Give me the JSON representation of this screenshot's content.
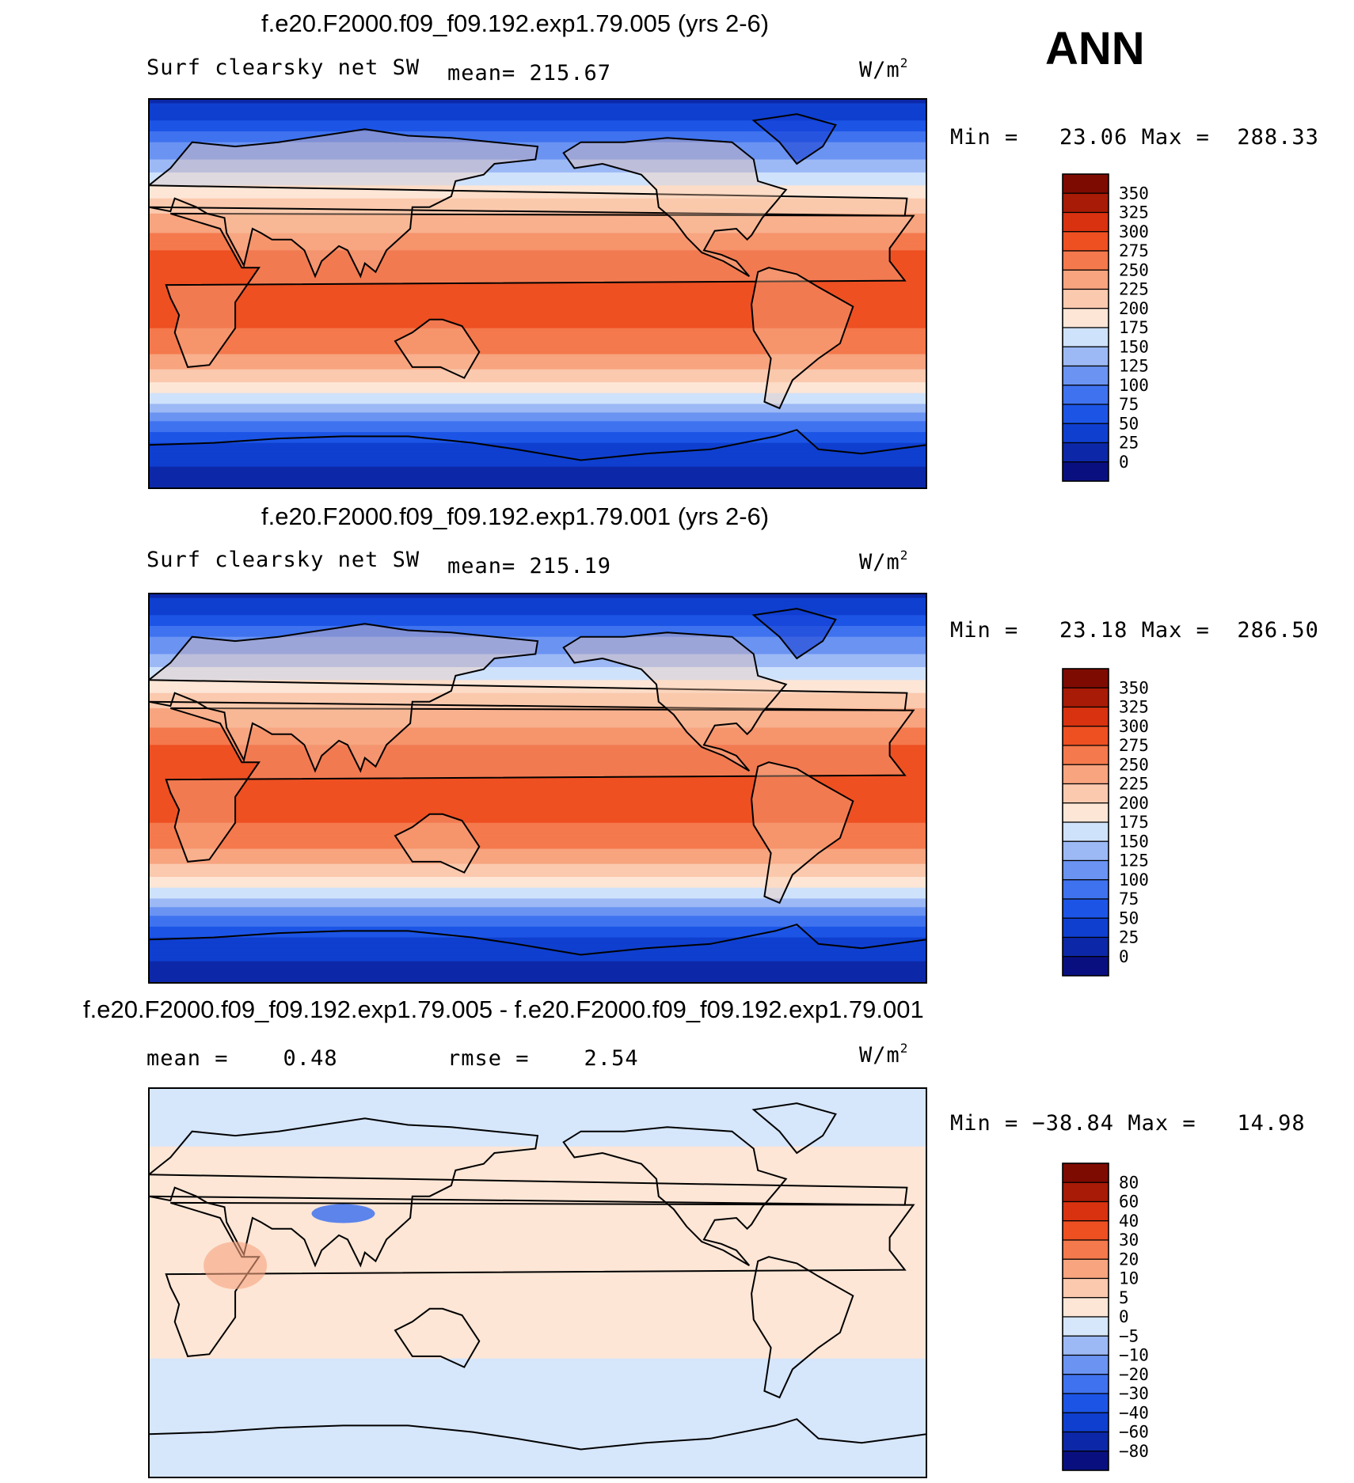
{
  "season": "ANN",
  "units": {
    "base": "W/m",
    "sup": "2"
  },
  "panels": [
    {
      "title": "f.e20.F2000.f09_f09.192.exp1.79.005 (yrs 2-6)",
      "variable": "Surf clearsky net SW",
      "stat_text": "mean= 215.67",
      "minmax_text": "Min =   23.06 Max =  288.33"
    },
    {
      "title": "f.e20.F2000.f09_f09.192.exp1.79.001 (yrs 2-6)",
      "variable": "Surf clearsky net SW",
      "stat_text": "mean= 215.19",
      "minmax_text": "Min =   23.18 Max =  286.50"
    },
    {
      "title": "f.e20.F2000.f09_f09.192.exp1.79.005 - f.e20.F2000.f09_f09.192.exp1.79.001",
      "variable": "mean =    0.48",
      "stat_text": "rmse =    2.54",
      "minmax_text": "Min = −38.84 Max =   14.98"
    }
  ],
  "chart_data": [
    {
      "type": "heatmap",
      "title": "f.e20.F2000.f09_f09.192.exp1.79.005 (yrs 2-6)",
      "variable": "Surf clearsky net SW",
      "units": "W/m^2",
      "mean": 215.67,
      "min": 23.06,
      "max": 288.33,
      "colorbar_levels": [
        "0",
        "25",
        "50",
        "75",
        "100",
        "125",
        "150",
        "175",
        "200",
        "225",
        "250",
        "275",
        "300",
        "325",
        "350"
      ],
      "colorbar_colors": [
        "#0a0f80",
        "#0c28a8",
        "#0f3fcf",
        "#1c55e6",
        "#3f72ef",
        "#6a93f2",
        "#9cb9f5",
        "#cfe2fb",
        "#fde6d6",
        "#fbc9ae",
        "#f7a47f",
        "#f4794c",
        "#ee5022",
        "#d83210",
        "#a81b06",
        "#7e0b02"
      ],
      "zonal_profile": {
        "latitudes": [
          90,
          80,
          70,
          60,
          50,
          40,
          30,
          20,
          10,
          0,
          -10,
          -20,
          -30,
          -40,
          -50,
          -60,
          -70,
          -80,
          -90
        ],
        "values": [
          20,
          50,
          100,
          130,
          175,
          215,
          245,
          275,
          285,
          285,
          282,
          270,
          245,
          205,
          155,
          95,
          45,
          25,
          20
        ]
      }
    },
    {
      "type": "heatmap",
      "title": "f.e20.F2000.f09_f09.192.exp1.79.001 (yrs 2-6)",
      "variable": "Surf clearsky net SW",
      "units": "W/m^2",
      "mean": 215.19,
      "min": 23.18,
      "max": 286.5,
      "colorbar_levels": [
        "0",
        "25",
        "50",
        "75",
        "100",
        "125",
        "150",
        "175",
        "200",
        "225",
        "250",
        "275",
        "300",
        "325",
        "350"
      ],
      "colorbar_colors": [
        "#0a0f80",
        "#0c28a8",
        "#0f3fcf",
        "#1c55e6",
        "#3f72ef",
        "#6a93f2",
        "#9cb9f5",
        "#cfe2fb",
        "#fde6d6",
        "#fbc9ae",
        "#f7a47f",
        "#f4794c",
        "#ee5022",
        "#d83210",
        "#a81b06",
        "#7e0b02"
      ],
      "zonal_profile": {
        "latitudes": [
          90,
          80,
          70,
          60,
          50,
          40,
          30,
          20,
          10,
          0,
          -10,
          -20,
          -30,
          -40,
          -50,
          -60,
          -70,
          -80,
          -90
        ],
        "values": [
          20,
          50,
          100,
          130,
          175,
          215,
          245,
          275,
          285,
          285,
          282,
          270,
          245,
          205,
          155,
          95,
          45,
          25,
          20
        ]
      }
    },
    {
      "type": "heatmap",
      "title": "f.e20.F2000.f09_f09.192.exp1.79.005 - f.e20.F2000.f09_f09.192.exp1.79.001",
      "units": "W/m^2",
      "mean": 0.48,
      "rmse": 2.54,
      "min": -38.84,
      "max": 14.98,
      "colorbar_levels": [
        "−80",
        "−60",
        "−40",
        "−30",
        "−20",
        "−10",
        "−5",
        "0",
        "5",
        "10",
        "20",
        "30",
        "40",
        "60",
        "80"
      ],
      "colorbar_colors": [
        "#0a0f80",
        "#0c28a8",
        "#0f3fcf",
        "#1c55e6",
        "#3f72ef",
        "#6a93f2",
        "#9cb9f5",
        "#d6e6fb",
        "#fde6d6",
        "#fbc9ae",
        "#f7a47f",
        "#f4794c",
        "#ee5022",
        "#d83210",
        "#a81b06",
        "#7e0b02"
      ],
      "zonal_profile": {
        "latitudes": [
          90,
          80,
          70,
          60,
          50,
          40,
          30,
          20,
          10,
          0,
          -10,
          -20,
          -30,
          -40,
          -50,
          -60,
          -70,
          -80,
          -90
        ],
        "values": [
          -3,
          -4,
          -2,
          1,
          1,
          1,
          2,
          1,
          1,
          1,
          1,
          1,
          1,
          -1,
          -1,
          -1,
          -1,
          -1,
          -2
        ]
      }
    }
  ]
}
